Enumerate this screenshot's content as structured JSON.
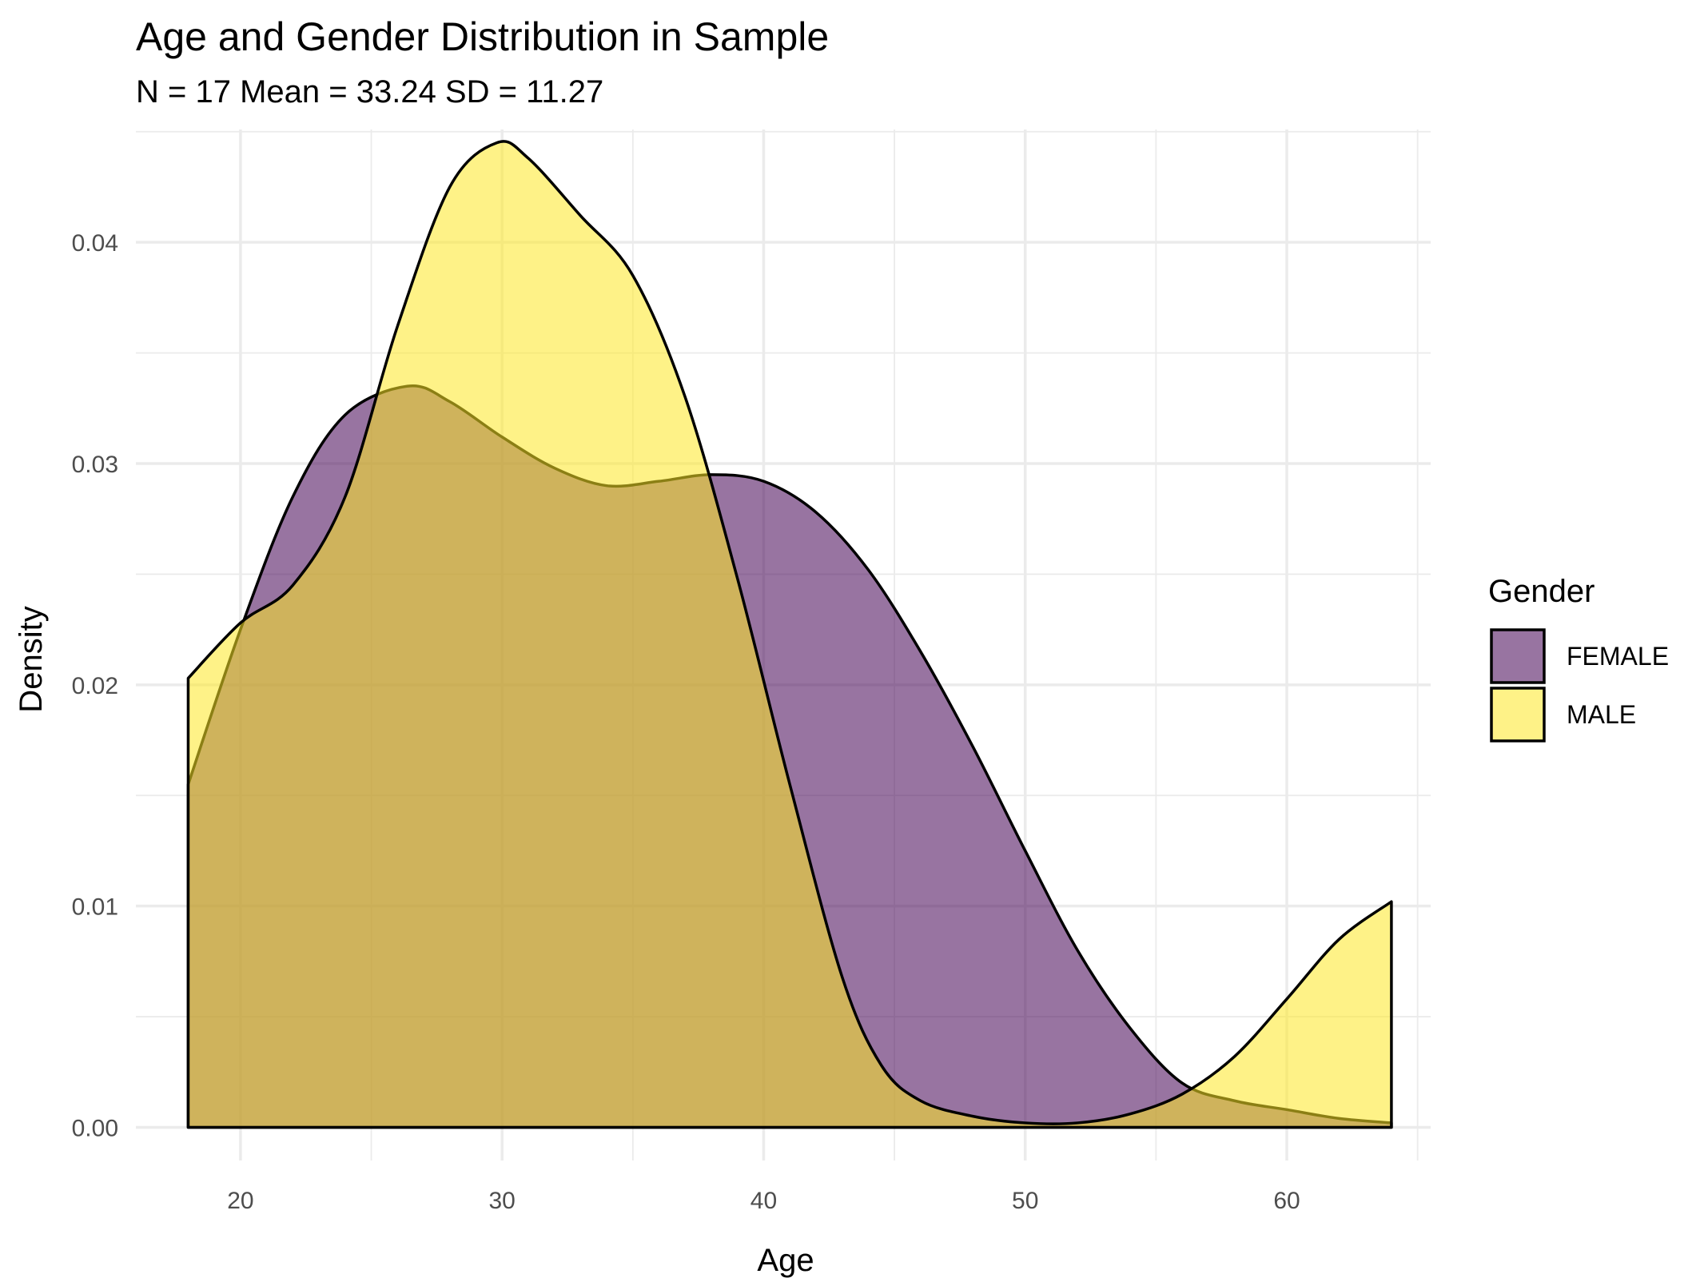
{
  "chart_data": {
    "type": "area",
    "title": "Age and Gender Distribution in Sample",
    "subtitle": "N = 17 Mean = 33.24 SD =  11.27",
    "xlabel": "Age",
    "ylabel": "Density",
    "xlim": [
      16,
      65.5
    ],
    "ylim": [
      -0.0015,
      0.0451
    ],
    "x_ticks": [
      20,
      30,
      40,
      50,
      60
    ],
    "x_tick_labels": [
      "20",
      "30",
      "40",
      "50",
      "60"
    ],
    "y_ticks": [
      0.0,
      0.01,
      0.02,
      0.03,
      0.04
    ],
    "y_tick_labels": [
      "0.00",
      "0.01",
      "0.02",
      "0.03",
      "0.04"
    ],
    "grid": true,
    "legend": {
      "title": "Gender",
      "position": "right"
    },
    "series": [
      {
        "name": "FEMALE",
        "color": "#440154",
        "opacity": 0.55,
        "points": [
          [
            18,
            0.0155
          ],
          [
            20,
            0.0225
          ],
          [
            22,
            0.0285
          ],
          [
            24,
            0.0322
          ],
          [
            26.4,
            0.0335
          ],
          [
            28,
            0.0328
          ],
          [
            30,
            0.0312
          ],
          [
            32,
            0.0298
          ],
          [
            34,
            0.029
          ],
          [
            36,
            0.0292
          ],
          [
            38,
            0.0295
          ],
          [
            40,
            0.0292
          ],
          [
            42,
            0.0278
          ],
          [
            44,
            0.0252
          ],
          [
            46,
            0.0215
          ],
          [
            48,
            0.0172
          ],
          [
            50,
            0.0125
          ],
          [
            52,
            0.008
          ],
          [
            54,
            0.0045
          ],
          [
            56,
            0.002
          ],
          [
            58,
            0.0012
          ],
          [
            60,
            0.0008
          ],
          [
            62,
            0.0004
          ],
          [
            64,
            0.0002
          ]
        ]
      },
      {
        "name": "MALE",
        "color": "#FDE725",
        "opacity": 0.55,
        "points": [
          [
            18,
            0.0203
          ],
          [
            20,
            0.0228
          ],
          [
            22,
            0.0245
          ],
          [
            24,
            0.0285
          ],
          [
            26,
            0.0362
          ],
          [
            28,
            0.0425
          ],
          [
            29.8,
            0.0445
          ],
          [
            31,
            0.0438
          ],
          [
            33,
            0.0412
          ],
          [
            35,
            0.0385
          ],
          [
            37,
            0.033
          ],
          [
            39,
            0.0248
          ],
          [
            41,
            0.0155
          ],
          [
            43,
            0.0068
          ],
          [
            44.5,
            0.0028
          ],
          [
            46,
            0.0012
          ],
          [
            48,
            0.0005
          ],
          [
            50,
            0.0002
          ],
          [
            52,
            0.0002
          ],
          [
            54,
            0.0006
          ],
          [
            56,
            0.0015
          ],
          [
            58,
            0.0032
          ],
          [
            60,
            0.0058
          ],
          [
            62,
            0.0085
          ],
          [
            64,
            0.0102
          ]
        ]
      }
    ]
  }
}
